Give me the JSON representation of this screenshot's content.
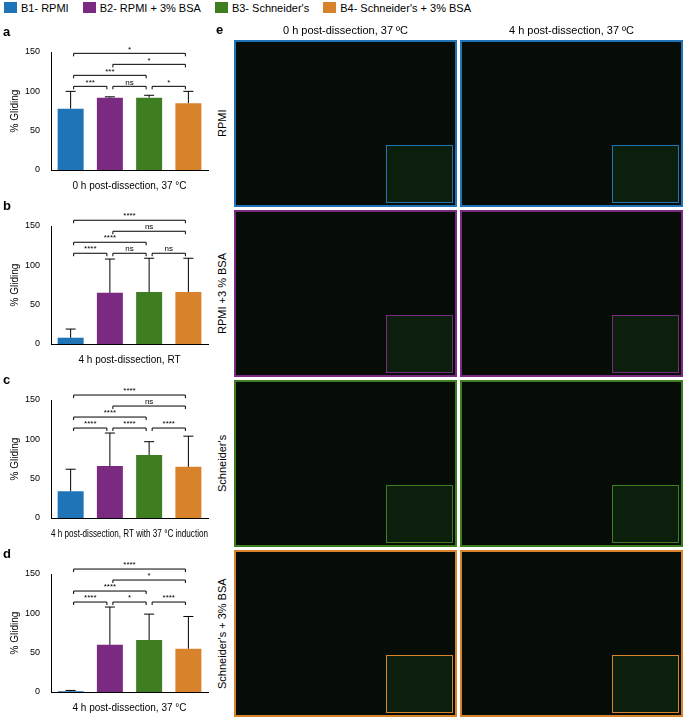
{
  "chart_data": [
    {
      "panel": "a",
      "type": "bar",
      "x_label": "0 h post-dissection, 37 °C",
      "y_label": "% Gliding",
      "categories": [
        "B1- RPMI",
        "B2- RPMI + 3% BSA",
        "B3- Schneider's",
        "B4- Schneider's + 3% BSA"
      ],
      "colors": [
        "#1f74b8",
        "#7b2a82",
        "#3e7d20",
        "#d8822c"
      ],
      "values": [
        78,
        92,
        92,
        85
      ],
      "errors": [
        22,
        1,
        3,
        15
      ],
      "ylim": [
        0,
        150
      ],
      "yticks": [
        0,
        50,
        100,
        150
      ],
      "grid": false,
      "tick_labels": "y",
      "legend": "top",
      "comparisons": [
        {
          "pair": [
            0,
            1
          ],
          "label": "***"
        },
        {
          "pair": [
            1,
            2
          ],
          "label": "ns"
        },
        {
          "pair": [
            2,
            3
          ],
          "label": "*"
        },
        {
          "pair": [
            0,
            2
          ],
          "label": "***"
        },
        {
          "pair": [
            1,
            3
          ],
          "label": "*"
        },
        {
          "pair": [
            0,
            3
          ],
          "label": "*"
        }
      ]
    },
    {
      "panel": "b",
      "type": "bar",
      "x_label": "4 h post-dissection, RT",
      "y_label": "% Gliding",
      "categories": [
        "B1- RPMI",
        "B2- RPMI + 3% BSA",
        "B3- Schneider's",
        "B4- Schneider's + 3% BSA"
      ],
      "colors": [
        "#1f74b8",
        "#7b2a82",
        "#3e7d20",
        "#d8822c"
      ],
      "values": [
        8,
        65,
        66,
        66
      ],
      "errors": [
        11,
        43,
        43,
        43
      ],
      "ylim": [
        0,
        150
      ],
      "yticks": [
        0,
        50,
        100,
        150
      ],
      "grid": false,
      "tick_labels": "y",
      "comparisons": [
        {
          "pair": [
            0,
            1
          ],
          "label": "****"
        },
        {
          "pair": [
            1,
            2
          ],
          "label": "ns"
        },
        {
          "pair": [
            2,
            3
          ],
          "label": "ns"
        },
        {
          "pair": [
            0,
            2
          ],
          "label": "****"
        },
        {
          "pair": [
            1,
            3
          ],
          "label": "ns"
        },
        {
          "pair": [
            0,
            3
          ],
          "label": "****"
        }
      ]
    },
    {
      "panel": "c",
      "type": "bar",
      "x_label": "4 h post-dissection, RT with 37 °C induction",
      "y_label": "% Gliding",
      "categories": [
        "B1- RPMI",
        "B2- RPMI + 3% BSA",
        "B3- Schneider's",
        "B4- Schneider's + 3% BSA"
      ],
      "colors": [
        "#1f74b8",
        "#7b2a82",
        "#3e7d20",
        "#d8822c"
      ],
      "values": [
        34,
        66,
        80,
        65
      ],
      "errors": [
        28,
        42,
        17,
        39
      ],
      "ylim": [
        0,
        150
      ],
      "yticks": [
        0,
        50,
        100,
        150
      ],
      "grid": false,
      "tick_labels": "y",
      "comparisons": [
        {
          "pair": [
            0,
            1
          ],
          "label": "****"
        },
        {
          "pair": [
            1,
            2
          ],
          "label": "****"
        },
        {
          "pair": [
            2,
            3
          ],
          "label": "****"
        },
        {
          "pair": [
            0,
            2
          ],
          "label": "****"
        },
        {
          "pair": [
            1,
            3
          ],
          "label": "ns"
        },
        {
          "pair": [
            0,
            3
          ],
          "label": "****"
        }
      ]
    },
    {
      "panel": "d",
      "type": "bar",
      "x_label": "4 h post-dissection, 37 °C",
      "y_label": "% Gliding",
      "categories": [
        "B1- RPMI",
        "B2- RPMI + 3% BSA",
        "B3- Schneider's",
        "B4- Schneider's + 3% BSA"
      ],
      "colors": [
        "#1f74b8",
        "#7b2a82",
        "#3e7d20",
        "#d8822c"
      ],
      "values": [
        1,
        60,
        66,
        55
      ],
      "errors": [
        1,
        48,
        33,
        41
      ],
      "ylim": [
        0,
        150
      ],
      "yticks": [
        0,
        50,
        100,
        150
      ],
      "grid": false,
      "tick_labels": "y",
      "comparisons": [
        {
          "pair": [
            0,
            1
          ],
          "label": "****"
        },
        {
          "pair": [
            1,
            2
          ],
          "label": "*"
        },
        {
          "pair": [
            2,
            3
          ],
          "label": "****"
        },
        {
          "pair": [
            0,
            2
          ],
          "label": "****"
        },
        {
          "pair": [
            1,
            3
          ],
          "label": "*"
        },
        {
          "pair": [
            0,
            3
          ],
          "label": "****"
        }
      ]
    }
  ],
  "panel_e": {
    "panel": "e",
    "columns": [
      "0 h post-dissection, 37 ºC",
      "4 h post-dissection, 37 ºC"
    ],
    "rows": [
      "RPMI",
      "RPMI +3 % BSA",
      "Schneider's",
      "Schneider's + 3% BSA"
    ],
    "colors": [
      "#1f74b8",
      "#7b2a82",
      "#3e7d20",
      "#d8822c"
    ]
  }
}
